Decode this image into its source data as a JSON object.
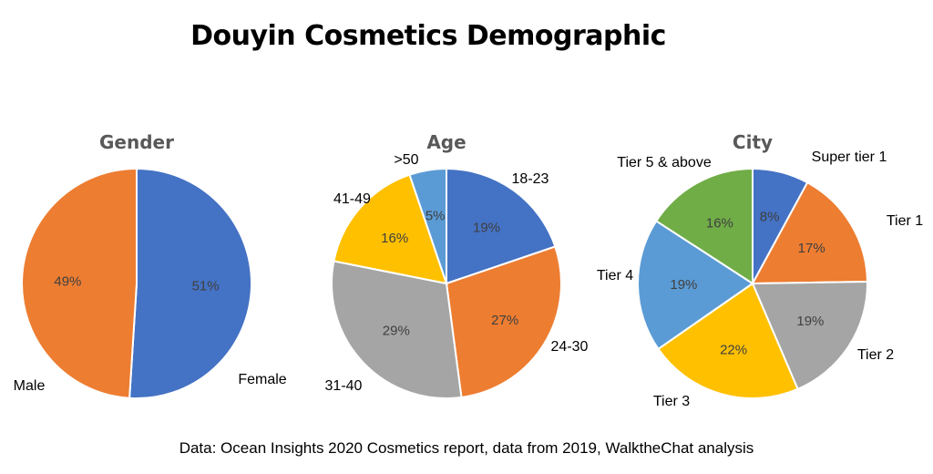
{
  "title": "Douyin Cosmetics Demographic",
  "source": "Data: Ocean Insights 2020 Cosmetics report, data from 2019,  WalktheChat analysis",
  "chart_data": [
    {
      "type": "pie",
      "title": "Gender",
      "categories": [
        "Female",
        "Male"
      ],
      "values": [
        51,
        49
      ],
      "value_labels": [
        "51%",
        "49%"
      ],
      "colors": [
        "#4472C4",
        "#ED7D31"
      ],
      "start": "12 o'clock",
      "direction": "clockwise"
    },
    {
      "type": "pie",
      "title": "Age",
      "categories": [
        "18-23",
        "24-30",
        "31-40",
        "41-49",
        ">50"
      ],
      "values": [
        19,
        27,
        29,
        16,
        5
      ],
      "value_labels": [
        "19%",
        "27%",
        "29%",
        "16%",
        "5%"
      ],
      "colors": [
        "#4472C4",
        "#ED7D31",
        "#A5A5A5",
        "#FFC000",
        "#5B9BD5"
      ],
      "start": "12 o'clock",
      "direction": "clockwise"
    },
    {
      "type": "pie",
      "title": "City",
      "categories": [
        "Super tier 1",
        "Tier 1",
        "Tier 2",
        "Tier 3",
        "Tier 4",
        "Tier 5 & above"
      ],
      "values": [
        8,
        17,
        19,
        22,
        19,
        16
      ],
      "value_labels": [
        "8%",
        "17%",
        "19%",
        "22%",
        "19%",
        "16%"
      ],
      "colors": [
        "#4472C4",
        "#ED7D31",
        "#A5A5A5",
        "#FFC000",
        "#5B9BD5",
        "#70AD47"
      ],
      "start": "12 o'clock",
      "direction": "clockwise"
    }
  ]
}
